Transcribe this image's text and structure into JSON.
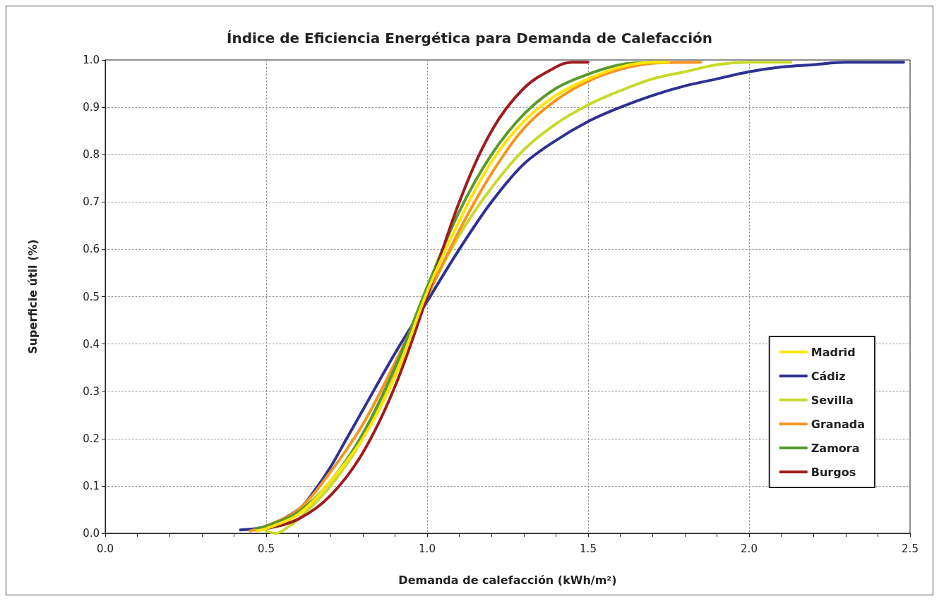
{
  "chart_data": {
    "type": "line",
    "title": "Índice de Eficiencia Energética para Demanda de Calefacción",
    "xlabel": "Demanda de calefacción (kWh/m²)",
    "ylabel": "Superficie útil (%)",
    "xlim": [
      0,
      2.5
    ],
    "ylim": [
      0,
      1
    ],
    "xticks": [
      {
        "value": 0,
        "label": "0.0"
      },
      {
        "value": 0.1,
        "label": null
      },
      {
        "value": 0.2,
        "label": null
      },
      {
        "value": 0.3,
        "label": null
      },
      {
        "value": 0.4,
        "label": null
      },
      {
        "value": 0.5,
        "label": "0.5"
      },
      {
        "value": 0.6,
        "label": null
      },
      {
        "value": 0.7,
        "label": null
      },
      {
        "value": 0.8,
        "label": null
      },
      {
        "value": 0.9,
        "label": null
      },
      {
        "value": 1,
        "label": "1.0"
      },
      {
        "value": 1.1,
        "label": null
      },
      {
        "value": 1.2,
        "label": null
      },
      {
        "value": 1.3,
        "label": null
      },
      {
        "value": 1.4,
        "label": null
      },
      {
        "value": 1.5,
        "label": "1.5"
      },
      {
        "value": 1.6,
        "label": null
      },
      {
        "value": 1.7,
        "label": null
      },
      {
        "value": 1.8,
        "label": null
      },
      {
        "value": 1.9,
        "label": null
      },
      {
        "value": 2,
        "label": "2.0"
      },
      {
        "value": 2.1,
        "label": null
      },
      {
        "value": 2.2,
        "label": null
      },
      {
        "value": 2.3,
        "label": null
      },
      {
        "value": 2.4,
        "label": null
      },
      {
        "value": 2.5,
        "label": "2.5"
      }
    ],
    "yticks": [
      {
        "value": 0,
        "label": "0.0"
      },
      0.1,
      0.2,
      0.3,
      0.4,
      0.5,
      0.6,
      0.7,
      0.8,
      0.9,
      {
        "value": 1,
        "label": "1.0"
      }
    ],
    "grid": true,
    "legend": "bottom right",
    "marker": "none",
    "line_style": "solid",
    "series": [
      {
        "name": "Madrid",
        "color": "#ffe600",
        "x": [
          0.47,
          0.5,
          0.6,
          0.7,
          0.8,
          0.9,
          1.0,
          1.1,
          1.2,
          1.3,
          1.4,
          1.5,
          1.6,
          1.7,
          1.75
        ],
        "values": [
          0.005,
          0.01,
          0.04,
          0.11,
          0.2,
          0.33,
          0.51,
          0.66,
          0.785,
          0.87,
          0.925,
          0.96,
          0.985,
          0.995,
          0.995
        ]
      },
      {
        "name": "Cádiz",
        "color": "#2e3192",
        "x": [
          0.42,
          0.5,
          0.6,
          0.65,
          0.7,
          0.75,
          0.8,
          0.9,
          1.0,
          1.1,
          1.2,
          1.3,
          1.4,
          1.5,
          1.6,
          1.7,
          1.8,
          1.9,
          2.0,
          2.1,
          2.2,
          2.3,
          2.48
        ],
        "values": [
          0.007,
          0.015,
          0.05,
          0.09,
          0.14,
          0.2,
          0.26,
          0.38,
          0.49,
          0.6,
          0.7,
          0.78,
          0.83,
          0.87,
          0.9,
          0.925,
          0.945,
          0.96,
          0.975,
          0.985,
          0.99,
          0.995,
          0.995
        ]
      },
      {
        "name": "Sevilla",
        "color": "#c8d92b",
        "x": [
          0.5,
          0.53,
          0.55,
          0.6,
          0.7,
          0.8,
          0.9,
          1.0,
          1.1,
          1.2,
          1.3,
          1.4,
          1.5,
          1.6,
          1.7,
          1.8,
          1.9,
          2.0,
          2.13
        ],
        "values": [
          0.005,
          0.0,
          0.005,
          0.03,
          0.1,
          0.2,
          0.34,
          0.5,
          0.63,
          0.73,
          0.81,
          0.865,
          0.905,
          0.935,
          0.96,
          0.975,
          0.99,
          0.995,
          0.995
        ]
      },
      {
        "name": "Granada",
        "color": "#f7941d",
        "x": [
          0.45,
          0.5,
          0.6,
          0.7,
          0.8,
          0.9,
          1.0,
          1.1,
          1.2,
          1.3,
          1.4,
          1.5,
          1.6,
          1.7,
          1.85
        ],
        "values": [
          0.005,
          0.015,
          0.05,
          0.13,
          0.23,
          0.36,
          0.5,
          0.64,
          0.76,
          0.855,
          0.915,
          0.955,
          0.98,
          0.993,
          0.995
        ]
      },
      {
        "name": "Zamora",
        "color": "#5a9a2f",
        "x": [
          0.47,
          0.5,
          0.6,
          0.7,
          0.8,
          0.9,
          1.0,
          1.1,
          1.2,
          1.3,
          1.4,
          1.5,
          1.6,
          1.7
        ],
        "values": [
          0.01,
          0.015,
          0.045,
          0.11,
          0.21,
          0.35,
          0.52,
          0.68,
          0.8,
          0.885,
          0.94,
          0.97,
          0.99,
          0.995
        ]
      },
      {
        "name": "Burgos",
        "color": "#9e1b20",
        "x": [
          0.5,
          0.6,
          0.7,
          0.8,
          0.9,
          1.0,
          1.1,
          1.2,
          1.3,
          1.4,
          1.45,
          1.5
        ],
        "values": [
          0.01,
          0.03,
          0.08,
          0.17,
          0.31,
          0.5,
          0.7,
          0.85,
          0.94,
          0.985,
          0.995,
          0.995
        ]
      }
    ]
  }
}
